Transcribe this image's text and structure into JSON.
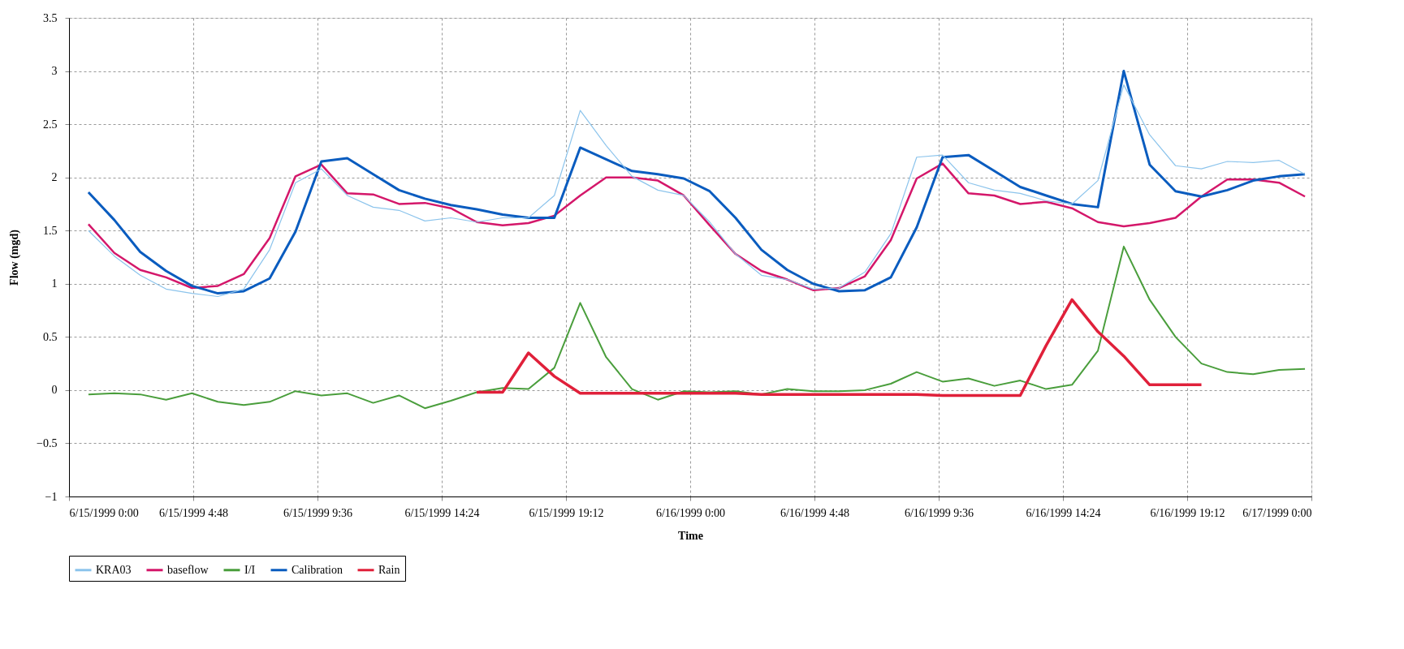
{
  "chart_data": {
    "type": "line",
    "xlabel": "Time",
    "ylabel": "Flow (mgd)",
    "x": [
      "1999-06-15T00:45",
      "1999-06-15T01:45",
      "1999-06-15T02:45",
      "1999-06-15T03:45",
      "1999-06-15T04:45",
      "1999-06-15T05:45",
      "1999-06-15T06:45",
      "1999-06-15T07:45",
      "1999-06-15T08:45",
      "1999-06-15T09:45",
      "1999-06-15T10:45",
      "1999-06-15T11:45",
      "1999-06-15T12:45",
      "1999-06-15T13:45",
      "1999-06-15T14:45",
      "1999-06-15T15:45",
      "1999-06-15T16:45",
      "1999-06-15T17:45",
      "1999-06-15T18:45",
      "1999-06-15T19:45",
      "1999-06-15T20:45",
      "1999-06-15T21:45",
      "1999-06-15T22:45",
      "1999-06-15T23:45",
      "1999-06-16T00:45",
      "1999-06-16T01:45",
      "1999-06-16T02:45",
      "1999-06-16T03:45",
      "1999-06-16T04:45",
      "1999-06-16T05:45",
      "1999-06-16T06:45",
      "1999-06-16T07:45",
      "1999-06-16T08:45",
      "1999-06-16T09:45",
      "1999-06-16T10:45",
      "1999-06-16T11:45",
      "1999-06-16T12:45",
      "1999-06-16T13:45",
      "1999-06-16T14:45",
      "1999-06-16T15:45",
      "1999-06-16T16:45",
      "1999-06-16T17:45",
      "1999-06-16T18:45",
      "1999-06-16T19:45",
      "1999-06-16T20:45",
      "1999-06-16T21:45",
      "1999-06-16T22:45",
      "1999-06-16T23:45"
    ],
    "series": [
      {
        "name": "KRA03",
        "color": "#8cc4ec",
        "values": [
          1.5,
          1.26,
          1.08,
          0.95,
          0.91,
          0.88,
          0.95,
          1.32,
          1.95,
          2.08,
          1.83,
          1.72,
          1.69,
          1.59,
          1.62,
          1.58,
          1.62,
          1.62,
          1.83,
          2.63,
          2.3,
          2.01,
          1.88,
          1.83,
          1.58,
          1.28,
          1.08,
          1.04,
          0.95,
          0.96,
          1.11,
          1.47,
          2.19,
          2.21,
          1.95,
          1.88,
          1.85,
          1.78,
          1.75,
          1.97,
          2.87,
          2.4,
          2.11,
          2.08,
          2.15,
          2.14,
          2.16,
          2.03
        ]
      },
      {
        "name": "baseflow",
        "color": "#d4176a",
        "values": [
          1.56,
          1.29,
          1.13,
          1.06,
          0.96,
          0.98,
          1.09,
          1.43,
          2.01,
          2.12,
          1.85,
          1.84,
          1.75,
          1.76,
          1.71,
          1.58,
          1.55,
          1.57,
          1.64,
          1.83,
          2.0,
          2.0,
          1.97,
          1.83,
          1.55,
          1.28,
          1.12,
          1.04,
          0.94,
          0.96,
          1.07,
          1.41,
          1.99,
          2.13,
          1.85,
          1.83,
          1.75,
          1.77,
          1.71,
          1.58,
          1.54,
          1.57,
          1.62,
          1.82,
          1.98,
          1.98,
          1.95,
          1.82
        ]
      },
      {
        "name": "I/I",
        "color": "#4a9e3c",
        "values": [
          -0.04,
          -0.03,
          -0.04,
          -0.09,
          -0.03,
          -0.11,
          -0.14,
          -0.11,
          -0.01,
          -0.05,
          -0.03,
          -0.12,
          -0.05,
          -0.17,
          -0.1,
          -0.02,
          0.02,
          0.01,
          0.21,
          0.82,
          0.31,
          0.01,
          -0.09,
          -0.01,
          -0.02,
          -0.01,
          -0.04,
          0.01,
          -0.01,
          -0.01,
          0.0,
          0.06,
          0.17,
          0.08,
          0.11,
          0.04,
          0.09,
          0.01,
          0.05,
          0.37,
          1.35,
          0.85,
          0.5,
          0.25,
          0.17,
          0.15,
          0.19,
          0.2
        ]
      },
      {
        "name": "Calibration",
        "color": "#0a5cbf",
        "values": [
          1.86,
          1.6,
          1.3,
          1.12,
          0.98,
          0.91,
          0.93,
          1.05,
          1.49,
          2.15,
          2.18,
          2.03,
          1.88,
          1.8,
          1.74,
          1.7,
          1.65,
          1.62,
          1.62,
          2.28,
          2.17,
          2.06,
          2.03,
          1.99,
          1.87,
          1.62,
          1.32,
          1.13,
          1.0,
          0.93,
          0.94,
          1.06,
          1.53,
          2.19,
          2.21,
          2.06,
          1.91,
          1.83,
          1.75,
          1.72,
          3.0,
          2.12,
          1.87,
          1.82,
          1.88,
          1.97,
          2.01,
          2.03
        ]
      },
      {
        "name": "Rain",
        "color": "#e0203a",
        "values": [
          null,
          null,
          null,
          null,
          null,
          null,
          null,
          null,
          null,
          null,
          null,
          null,
          null,
          null,
          null,
          -0.02,
          -0.02,
          0.35,
          0.13,
          -0.03,
          -0.03,
          -0.03,
          -0.03,
          -0.03,
          -0.03,
          -0.03,
          -0.04,
          -0.04,
          -0.04,
          -0.04,
          -0.04,
          -0.04,
          -0.04,
          -0.05,
          -0.05,
          -0.05,
          -0.05,
          0.42,
          0.85,
          0.55,
          0.32,
          0.05,
          0.05,
          0.05,
          null,
          null,
          null,
          null
        ]
      }
    ],
    "ylim": [
      -1,
      3.5
    ],
    "yticks": [
      -1,
      -0.5,
      0,
      0.5,
      1,
      1.5,
      2,
      2.5,
      3,
      3.5
    ],
    "xlim": [
      "1999-06-15T00:00",
      "1999-06-17T00:00"
    ],
    "xticks": [
      {
        "value": "1999-06-15T00:00",
        "label": "6/15/1999 0:00"
      },
      {
        "value": "1999-06-15T04:48",
        "label": "6/15/1999 4:48"
      },
      {
        "value": "1999-06-15T09:36",
        "label": "6/15/1999 9:36"
      },
      {
        "value": "1999-06-15T14:24",
        "label": "6/15/1999 14:24"
      },
      {
        "value": "1999-06-15T19:12",
        "label": "6/15/1999 19:12"
      },
      {
        "value": "1999-06-16T00:00",
        "label": "6/16/1999 0:00"
      },
      {
        "value": "1999-06-16T04:48",
        "label": "6/16/1999 4:48"
      },
      {
        "value": "1999-06-16T09:36",
        "label": "6/16/1999 9:36"
      },
      {
        "value": "1999-06-16T14:24",
        "label": "6/16/1999 14:24"
      },
      {
        "value": "1999-06-16T19:12",
        "label": "6/16/1999 19:12"
      },
      {
        "value": "1999-06-17T00:00",
        "label": "6/17/1999 0:00"
      }
    ],
    "grid": true,
    "legend": "bottom",
    "line_style": "solid",
    "marker": "none"
  }
}
